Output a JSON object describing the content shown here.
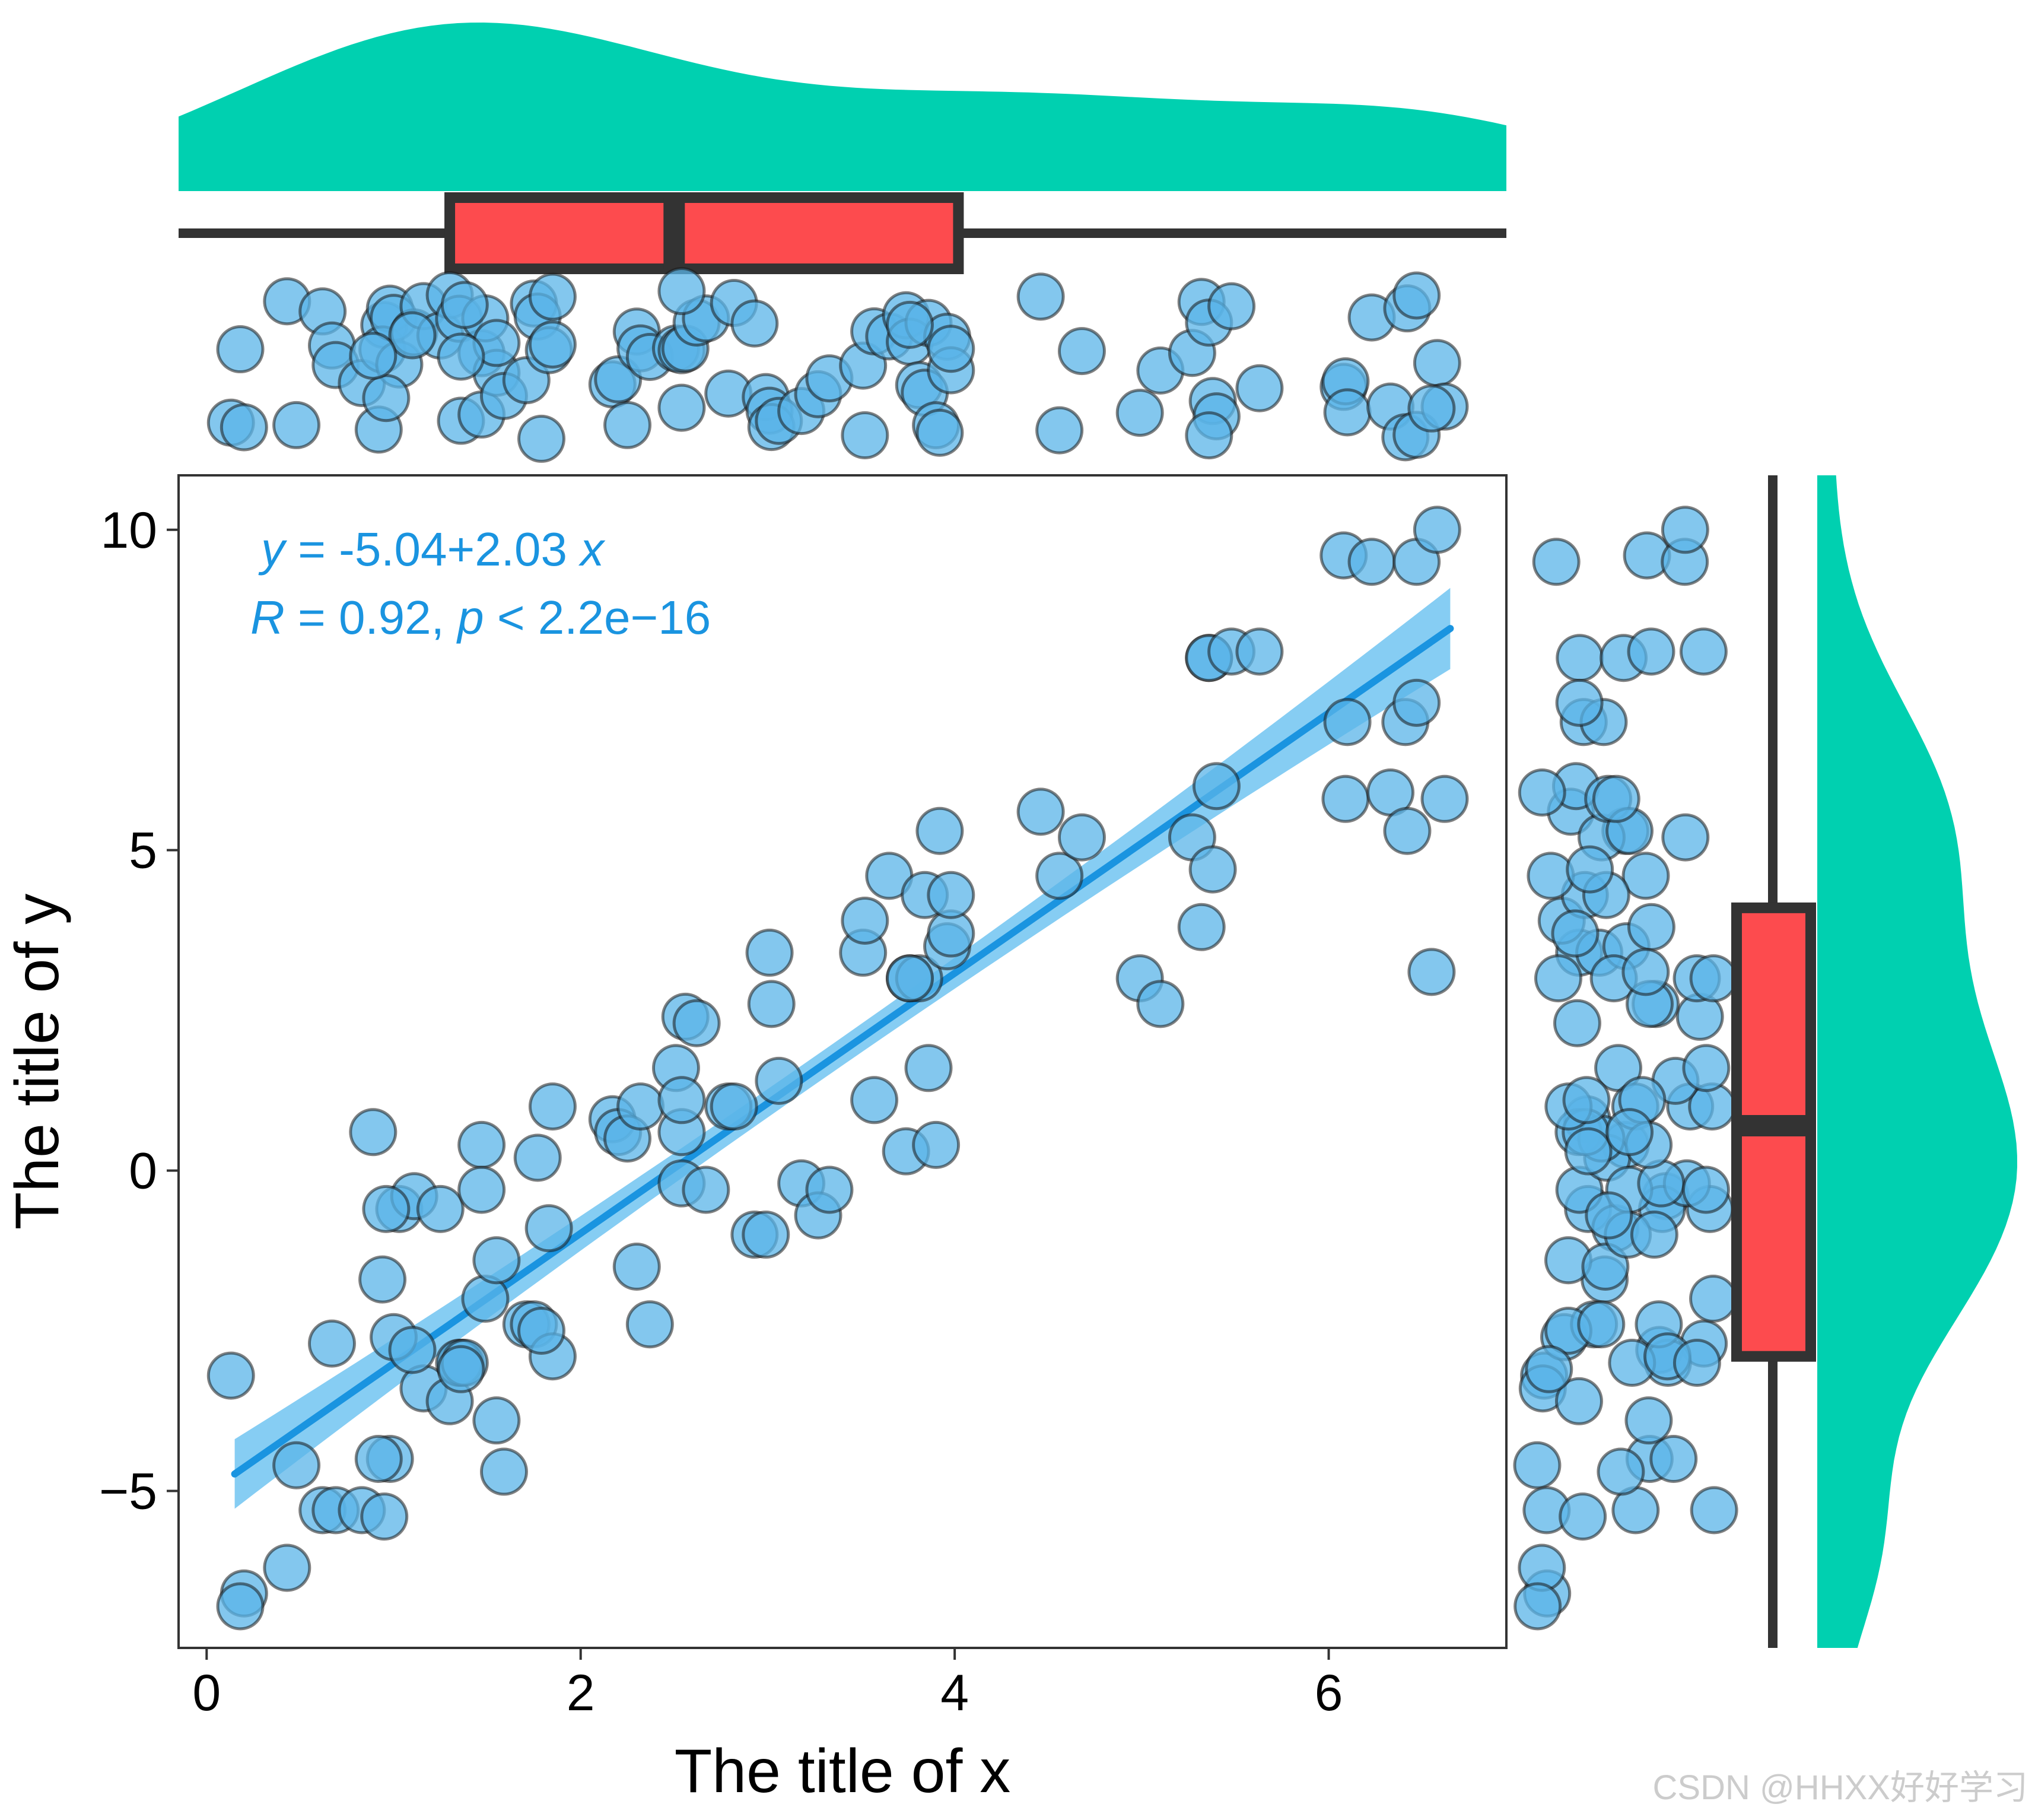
{
  "chart_data": {
    "type": "scatter",
    "xlabel": "The title of x",
    "ylabel": "The title of y",
    "xlim": [
      -0.15,
      6.95
    ],
    "ylim": [
      -7.45,
      10.85
    ],
    "xticks": [
      0,
      2,
      4,
      6
    ],
    "xtick_labels": [
      "0",
      "2",
      "4",
      "6"
    ],
    "yticks": [
      -5,
      0,
      5,
      10
    ],
    "ytick_labels": [
      "−5",
      "0",
      "5",
      "10"
    ],
    "annotation": {
      "eq_y": "y",
      "eq_rest": " = -5.04+2.03 ",
      "eq_x": "x",
      "r_label": "R",
      "r_rest": " = 0.92, ",
      "p_label": "p",
      "p_rest": " < 2.2e−16"
    },
    "regression": {
      "intercept": -5.04,
      "slope": 2.03,
      "x_range": [
        0.15,
        6.65
      ]
    },
    "points": {
      "x": [
        0.13,
        0.2,
        0.43,
        0.18,
        0.48,
        0.62,
        0.67,
        0.69,
        0.83,
        0.95,
        0.98,
        0.92,
        0.94,
        1.0,
        1.03,
        1.11,
        1.16,
        0.96,
        1.25,
        1.1,
        1.3,
        1.36,
        1.35,
        1.47,
        1.47,
        1.49,
        1.55,
        1.55,
        1.59,
        1.71,
        1.75,
        1.77,
        1.83,
        1.85,
        1.79,
        1.85,
        2.17,
        2.2,
        2.25,
        2.3,
        2.32,
        2.37,
        2.51,
        2.54,
        2.54,
        2.56,
        2.62,
        2.67,
        2.79,
        2.82,
        2.93,
        2.99,
        3.01,
        3.02,
        3.06,
        3.18,
        3.27,
        3.33,
        3.51,
        3.52,
        3.57,
        3.65,
        3.74,
        3.76,
        3.81,
        3.84,
        3.86,
        3.9,
        3.92,
        3.96,
        3.98,
        3.98,
        4.46,
        4.56,
        4.68,
        4.99,
        5.1,
        5.27,
        5.32,
        5.38,
        5.4,
        5.36,
        5.36,
        5.48,
        5.63,
        6.08,
        6.09,
        6.1,
        6.23,
        6.33,
        6.42,
        6.41,
        6.47,
        6.47,
        6.58,
        6.62,
        6.55,
        1.38,
        1.36,
        2.54,
        3.76,
        0.89
      ],
      "y": [
        -3.2,
        -6.6,
        -6.2,
        -6.8,
        -4.6,
        -5.3,
        -2.7,
        -5.3,
        -5.3,
        -5.4,
        -4.5,
        -4.5,
        -1.7,
        -2.6,
        -0.6,
        -0.4,
        -3.4,
        -0.6,
        -0.6,
        -2.8,
        -3.6,
        -3.0,
        -3.0,
        0.4,
        -0.3,
        -2.0,
        -1.4,
        -3.9,
        -4.7,
        -2.4,
        -2.4,
        0.2,
        -0.9,
        -2.9,
        -2.5,
        1.0,
        0.8,
        0.6,
        0.5,
        -1.5,
        1.0,
        -2.4,
        1.6,
        -0.2,
        0.6,
        2.4,
        2.3,
        -0.3,
        1.0,
        1.0,
        -1.0,
        -1.0,
        3.4,
        2.6,
        1.4,
        -0.2,
        -0.7,
        -0.3,
        3.4,
        3.9,
        1.1,
        4.6,
        0.3,
        3.0,
        3.0,
        4.3,
        1.6,
        0.4,
        5.3,
        3.5,
        3.7,
        4.3,
        5.6,
        4.6,
        5.2,
        3.0,
        2.6,
        5.2,
        3.8,
        4.7,
        6.0,
        8.0,
        8.0,
        8.1,
        8.1,
        9.6,
        5.8,
        7.0,
        9.5,
        5.9,
        5.3,
        7.0,
        7.3,
        9.5,
        10.0,
        5.8,
        3.1,
        -3.0,
        -3.1,
        1.1,
        3.0,
        0.6
      ]
    },
    "marginals": {
      "x_box": {
        "q1": 1.3,
        "median": 2.5,
        "q3": 4.02,
        "whisker_low": -0.15,
        "whisker_high": 6.95
      },
      "y_box": {
        "q1": -2.9,
        "median": 0.7,
        "q3": 4.1,
        "whisker_low": -7.45,
        "whisker_high": 10.85
      }
    },
    "colors": {
      "point_fill": "#5ab4e8",
      "line": "#1a94e0",
      "band": "#86cdf3",
      "density": "#00d0b0",
      "box_fill": "#fd4b4e",
      "box_outline": "#333333",
      "annotation": "#1a94e0"
    }
  },
  "watermark": "CSDN @HHXX好好学习"
}
